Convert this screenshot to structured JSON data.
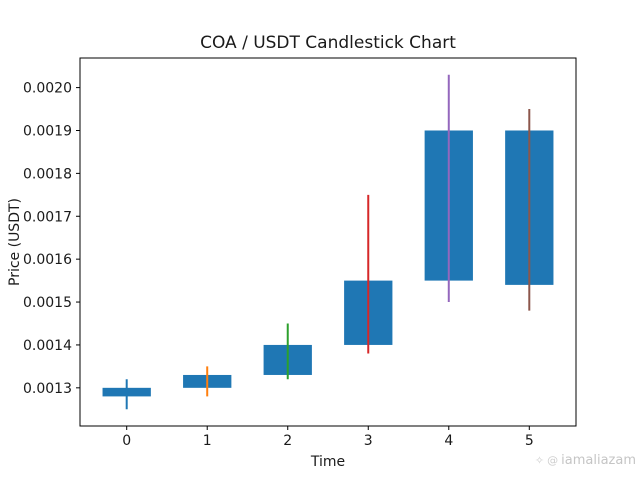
{
  "figure": {
    "title": "COA / USDT Candlestick Chart",
    "xlabel": "Time",
    "ylabel": "Price (USDT)"
  },
  "watermark": {
    "sparkle_icon": "✧",
    "at_icon": "@",
    "text": "iamaliazam"
  },
  "chart_data": {
    "type": "candlestick",
    "title": "COA / USDT Candlestick Chart",
    "xlabel": "Time",
    "ylabel": "Price (USDT)",
    "x": [
      0,
      1,
      2,
      3,
      4,
      5
    ],
    "open": [
      0.00128,
      0.0013,
      0.00133,
      0.0014,
      0.00155,
      0.0019
    ],
    "high": [
      0.00132,
      0.00135,
      0.00145,
      0.00175,
      0.00203,
      0.00195
    ],
    "low": [
      0.00125,
      0.00128,
      0.00132,
      0.00138,
      0.0015,
      0.00148
    ],
    "close": [
      0.0013,
      0.00133,
      0.0014,
      0.00155,
      0.0019,
      0.00154
    ],
    "bar_width": 0.6,
    "body_color": "#1f77b4",
    "wick_colors": [
      "#1f77b4",
      "#ff7f0e",
      "#2ca02c",
      "#d62728",
      "#9467bd",
      "#8c564b"
    ],
    "xlim": [
      -0.58,
      5.58
    ],
    "ylim": [
      0.001211,
      0.002069
    ],
    "xticks": [
      0,
      1,
      2,
      3,
      4,
      5
    ],
    "xtick_labels": [
      "0",
      "1",
      "2",
      "3",
      "4",
      "5"
    ],
    "yticks": [
      0.0013,
      0.0014,
      0.0015,
      0.0016,
      0.0017,
      0.0018,
      0.0019,
      0.002
    ],
    "ytick_labels": [
      "0.0013",
      "0.0014",
      "0.0015",
      "0.0016",
      "0.0017",
      "0.0018",
      "0.0019",
      "0.0020"
    ],
    "grid": false,
    "legend": null
  }
}
